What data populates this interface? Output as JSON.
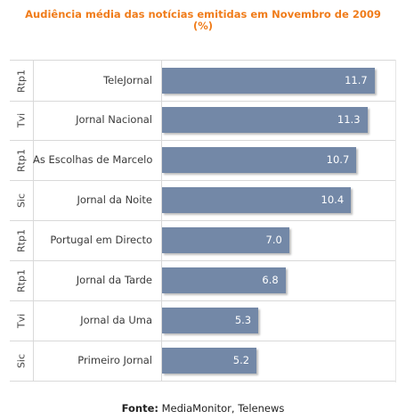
{
  "title_line1": "Audiência média das notícias emitidas em Novembro de 2009",
  "title_line2": "(%)",
  "source_label": "Fonte:",
  "source_text": " MediaMonitor, Telenews",
  "colors": {
    "bar": "#7388a7",
    "title": "#f07c1a"
  },
  "chart_data": {
    "type": "bar",
    "orientation": "horizontal",
    "title": "Audiência média das notícias emitidas em Novembro de 2009 (%)",
    "categories": [
      {
        "channel": "Rtp1",
        "program": "TeleJornal"
      },
      {
        "channel": "Tvi",
        "program": "Jornal Nacional"
      },
      {
        "channel": "Rtp1",
        "program": "As Escolhas de Marcelo"
      },
      {
        "channel": "Sic",
        "program": "Jornal da Noite"
      },
      {
        "channel": "Rtp1",
        "program": "Portugal em Directo"
      },
      {
        "channel": "Rtp1",
        "program": "Jornal da Tarde"
      },
      {
        "channel": "Tvi",
        "program": "Jornal da Uma"
      },
      {
        "channel": "Sic",
        "program": "Primeiro Jornal"
      }
    ],
    "values": [
      11.7,
      11.3,
      10.7,
      10.4,
      7.0,
      6.8,
      5.3,
      5.2
    ],
    "value_labels": [
      "11.7",
      "11.3",
      "10.7",
      "10.4",
      "7.0",
      "6.8",
      "5.3",
      "5.2"
    ],
    "xlim": [
      0,
      12.5
    ]
  }
}
